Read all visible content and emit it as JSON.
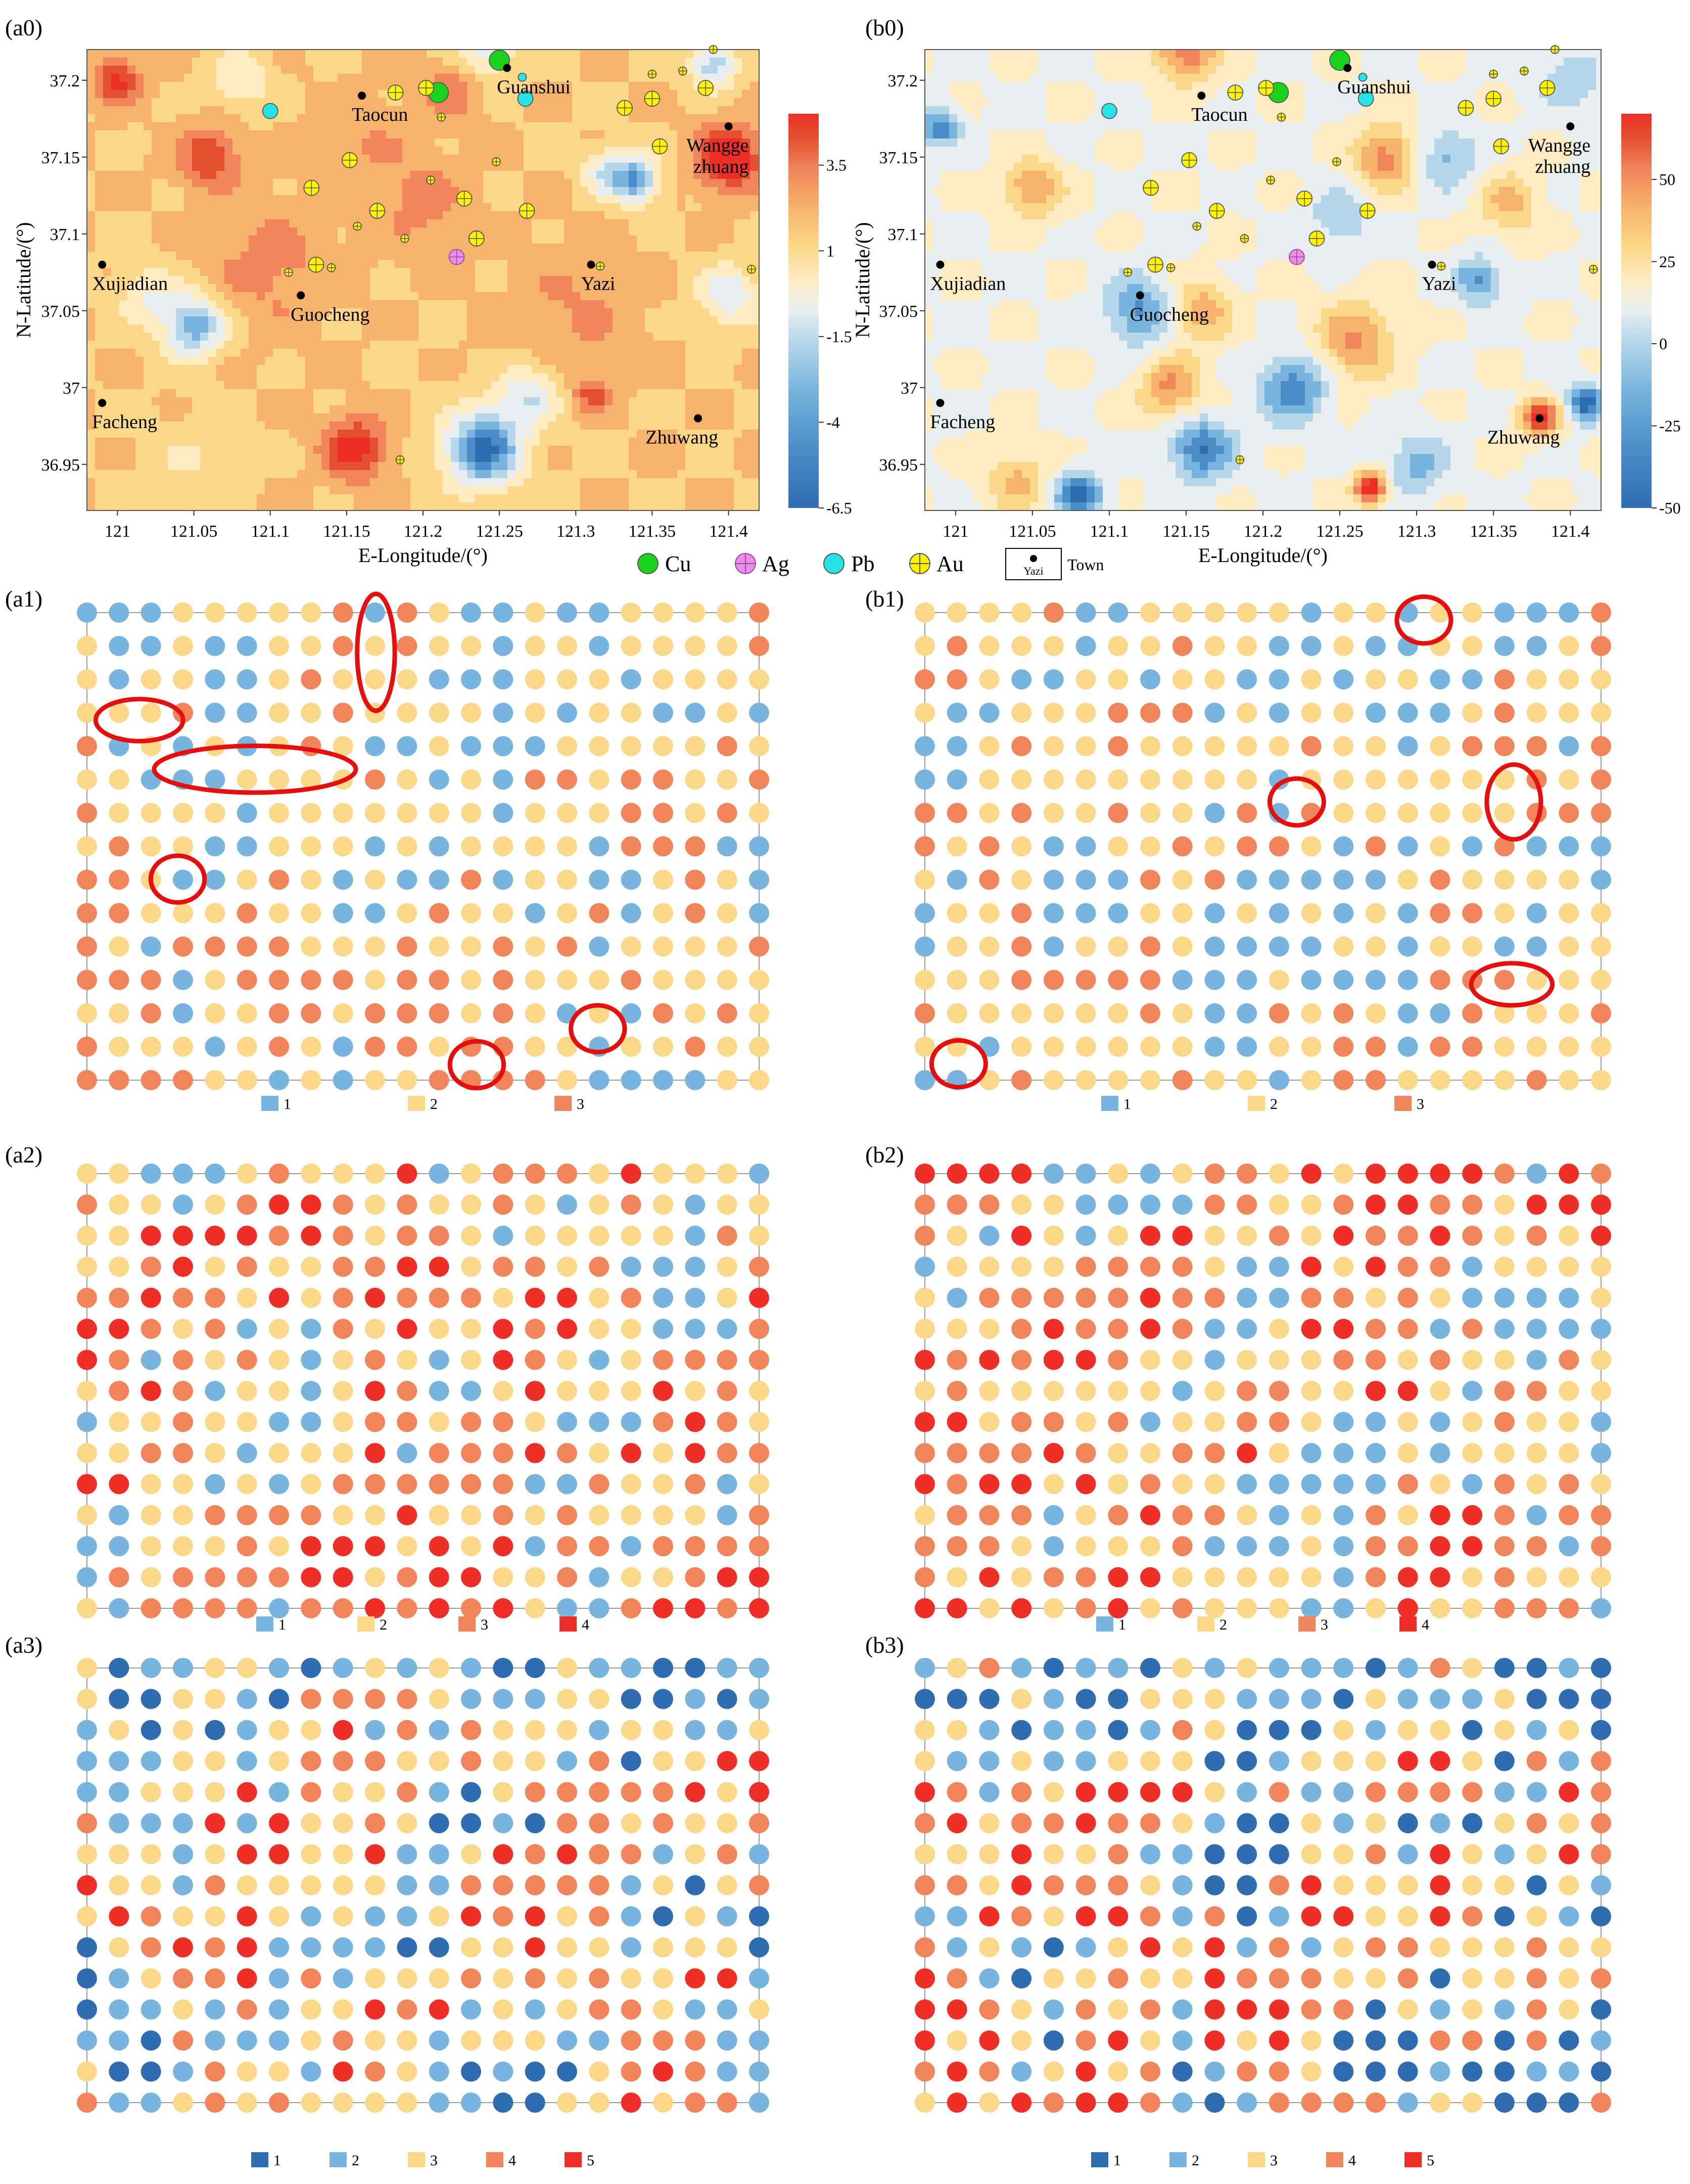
{
  "panels_map": [
    {
      "label": "(a0)",
      "xlabel": "E-Longitude/(°)",
      "ylabel": "N-Latitude/(°)",
      "x_ticks": [
        "121",
        "121.05",
        "121.1",
        "121.15",
        "121.2",
        "121.25",
        "121.3",
        "121.35",
        "121.4"
      ],
      "y_ticks": [
        "37.2",
        "37.15",
        "37.1",
        "37.05",
        "37",
        "36.95"
      ],
      "colorbar_ticks": [
        "3.5",
        "1",
        "-1.5",
        "-4",
        "-6.5"
      ],
      "colorbar_range": [
        -6.5,
        5
      ]
    },
    {
      "label": "(b0)",
      "xlabel": "E-Longitude/(°)",
      "ylabel": "N-Latitude/(°)",
      "x_ticks": [
        "121",
        "121.05",
        "121.1",
        "121.15",
        "121.2",
        "121.25",
        "121.3",
        "121.35",
        "121.4"
      ],
      "y_ticks": [
        "37.2",
        "37.15",
        "37.1",
        "37.05",
        "37",
        "36.95"
      ],
      "colorbar_ticks": [
        "50",
        "25",
        "0",
        "-25",
        "-50"
      ],
      "colorbar_range": [
        -50,
        70
      ]
    }
  ],
  "map_legend": {
    "cu": "Cu",
    "ag": "Ag",
    "pb": "Pb",
    "au": "Au",
    "town_sample": "Yazi",
    "town": "Town"
  },
  "towns": [
    {
      "name": "Guanshui",
      "lon": 121.255,
      "lat": 37.208
    },
    {
      "name": "Taocun",
      "lon": 121.16,
      "lat": 37.19
    },
    {
      "name": "Wangge",
      "name2": "zhuang",
      "lon": 121.4,
      "lat": 37.17
    },
    {
      "name": "Xujiadian",
      "lon": 120.99,
      "lat": 37.08
    },
    {
      "name": "Guocheng",
      "lon": 121.12,
      "lat": 37.06
    },
    {
      "name": "Yazi",
      "lon": 121.31,
      "lat": 37.08
    },
    {
      "name": "Facheng",
      "lon": 120.99,
      "lat": 36.99
    },
    {
      "name": "Zhuwang",
      "lon": 121.38,
      "lat": 36.98
    }
  ],
  "deposits": [
    {
      "type": "cu",
      "lon": 121.25,
      "lat": 37.213,
      "size": "l"
    },
    {
      "type": "cu",
      "lon": 121.21,
      "lat": 37.192,
      "size": "l"
    },
    {
      "type": "pb",
      "lon": 121.1,
      "lat": 37.18,
      "size": "m"
    },
    {
      "type": "pb",
      "lon": 121.267,
      "lat": 37.188,
      "size": "m"
    },
    {
      "type": "pb",
      "lon": 121.265,
      "lat": 37.202,
      "size": "s"
    },
    {
      "type": "ag",
      "lon": 121.222,
      "lat": 37.085,
      "size": "m"
    },
    {
      "type": "au",
      "lon": 121.182,
      "lat": 37.192,
      "size": "m"
    },
    {
      "type": "au",
      "lon": 121.202,
      "lat": 37.195,
      "size": "m"
    },
    {
      "type": "au",
      "lon": 121.212,
      "lat": 37.176,
      "size": "s"
    },
    {
      "type": "au",
      "lon": 121.152,
      "lat": 37.148,
      "size": "m"
    },
    {
      "type": "au",
      "lon": 121.205,
      "lat": 37.135,
      "size": "s"
    },
    {
      "type": "au",
      "lon": 121.227,
      "lat": 37.123,
      "size": "m"
    },
    {
      "type": "au",
      "lon": 121.248,
      "lat": 37.147,
      "size": "s"
    },
    {
      "type": "au",
      "lon": 121.268,
      "lat": 37.115,
      "size": "m"
    },
    {
      "type": "au",
      "lon": 121.127,
      "lat": 37.13,
      "size": "m"
    },
    {
      "type": "au",
      "lon": 121.17,
      "lat": 37.115,
      "size": "m"
    },
    {
      "type": "au",
      "lon": 121.157,
      "lat": 37.105,
      "size": "s"
    },
    {
      "type": "au",
      "lon": 121.188,
      "lat": 37.097,
      "size": "s"
    },
    {
      "type": "au",
      "lon": 121.235,
      "lat": 37.097,
      "size": "m"
    },
    {
      "type": "au",
      "lon": 121.13,
      "lat": 37.08,
      "size": "m"
    },
    {
      "type": "au",
      "lon": 121.14,
      "lat": 37.078,
      "size": "s"
    },
    {
      "type": "au",
      "lon": 121.112,
      "lat": 37.075,
      "size": "s"
    },
    {
      "type": "au",
      "lon": 121.185,
      "lat": 36.953,
      "size": "s"
    },
    {
      "type": "au",
      "lon": 121.316,
      "lat": 37.079,
      "size": "s"
    },
    {
      "type": "au",
      "lon": 121.332,
      "lat": 37.182,
      "size": "m"
    },
    {
      "type": "au",
      "lon": 121.35,
      "lat": 37.188,
      "size": "m"
    },
    {
      "type": "au",
      "lon": 121.355,
      "lat": 37.157,
      "size": "m"
    },
    {
      "type": "au",
      "lon": 121.385,
      "lat": 37.195,
      "size": "m"
    },
    {
      "type": "au",
      "lon": 121.35,
      "lat": 37.204,
      "size": "s"
    },
    {
      "type": "au",
      "lon": 121.37,
      "lat": 37.206,
      "size": "s"
    },
    {
      "type": "au",
      "lon": 121.39,
      "lat": 37.22,
      "size": "s"
    },
    {
      "type": "au",
      "lon": 121.415,
      "lat": 37.077,
      "size": "s"
    }
  ],
  "field_a": [
    [
      121.0,
      37.2,
      3.5,
      0.015
    ],
    [
      121.06,
      37.15,
      3.0,
      0.02
    ],
    [
      121.08,
      37.2,
      -2.0,
      0.02
    ],
    [
      121.22,
      37.195,
      2.0,
      0.02
    ],
    [
      121.24,
      37.22,
      -3.0,
      0.02
    ],
    [
      121.4,
      37.15,
      5.0,
      0.02
    ],
    [
      121.39,
      37.21,
      -4.0,
      0.015
    ],
    [
      121.32,
      37.14,
      -3.0,
      0.015
    ],
    [
      121.34,
      37.135,
      -5.0,
      0.015
    ],
    [
      121.05,
      37.04,
      -5.0,
      0.02
    ],
    [
      121.02,
      37.06,
      -2.0,
      0.02
    ],
    [
      121.155,
      36.96,
      4.0,
      0.02
    ],
    [
      121.24,
      36.96,
      -6.5,
      0.025
    ],
    [
      121.27,
      36.995,
      -3.0,
      0.02
    ],
    [
      121.31,
      36.995,
      2.5,
      0.012
    ],
    [
      121.2,
      37.12,
      1.5,
      0.03
    ],
    [
      121.16,
      37.16,
      1.0,
      0.03
    ],
    [
      121.05,
      36.95,
      -1.0,
      0.03
    ],
    [
      121.4,
      37.06,
      -3.0,
      0.02
    ],
    [
      121.1,
      37.08,
      1.5,
      0.04
    ],
    [
      121.3,
      37.05,
      1.2,
      0.04
    ]
  ],
  "field_b": [
    [
      121.05,
      37.13,
      35.0,
      0.018
    ],
    [
      121.12,
      37.05,
      -35.0,
      0.022
    ],
    [
      121.16,
      37.05,
      30.0,
      0.02
    ],
    [
      121.14,
      37.0,
      35.0,
      0.02
    ],
    [
      121.22,
      37.0,
      -40.0,
      0.022
    ],
    [
      121.16,
      36.96,
      -45.0,
      0.02
    ],
    [
      121.28,
      37.15,
      40.0,
      0.02
    ],
    [
      121.32,
      37.15,
      -25.0,
      0.02
    ],
    [
      121.25,
      37.11,
      -20.0,
      0.02
    ],
    [
      121.15,
      37.22,
      45.0,
      0.02
    ],
    [
      121.26,
      37.03,
      35.0,
      0.025
    ],
    [
      121.38,
      36.98,
      60.0,
      0.012
    ],
    [
      121.41,
      36.99,
      -50.0,
      0.012
    ],
    [
      121.27,
      36.935,
      70.0,
      0.01
    ],
    [
      121.08,
      36.93,
      -50.0,
      0.015
    ],
    [
      120.99,
      37.17,
      -40.0,
      0.012
    ],
    [
      121.36,
      37.12,
      25.0,
      0.02
    ],
    [
      121.34,
      37.07,
      -35.0,
      0.015
    ],
    [
      121.3,
      36.95,
      -25.0,
      0.02
    ],
    [
      121.04,
      36.94,
      25.0,
      0.02
    ],
    [
      121.4,
      37.2,
      -20.0,
      0.02
    ]
  ],
  "chart_data": [
    {
      "label": "(a1)",
      "type": "scatter",
      "rows": 15,
      "cols": 22,
      "classes": 3,
      "seed": 11,
      "legend": [
        "1",
        "2",
        "3"
      ],
      "highlight_circles": [
        [
          0.43,
          0.085,
          0.028,
          0.125
        ],
        [
          0.078,
          0.23,
          0.065,
          0.045
        ],
        [
          0.25,
          0.335,
          0.15,
          0.05
        ],
        [
          0.135,
          0.57,
          0.04,
          0.05
        ],
        [
          0.58,
          0.967,
          0.04,
          0.05
        ],
        [
          0.76,
          0.89,
          0.04,
          0.05
        ]
      ]
    },
    {
      "label": "(b1)",
      "type": "scatter",
      "rows": 15,
      "cols": 22,
      "classes": 3,
      "seed": 23,
      "legend": [
        "1",
        "2",
        "3"
      ],
      "highlight_circles": [
        [
          0.738,
          0.016,
          0.04,
          0.05
        ],
        [
          0.55,
          0.405,
          0.04,
          0.05
        ],
        [
          0.871,
          0.405,
          0.04,
          0.08
        ],
        [
          0.868,
          0.795,
          0.06,
          0.045
        ],
        [
          0.05,
          0.965,
          0.04,
          0.05
        ]
      ]
    },
    {
      "label": "(a2)",
      "type": "scatter",
      "rows": 15,
      "cols": 22,
      "classes": 4,
      "seed": 37,
      "legend": [
        "1",
        "2",
        "3",
        "4"
      ],
      "highlight_circles": []
    },
    {
      "label": "(b2)",
      "type": "scatter",
      "rows": 15,
      "cols": 22,
      "classes": 4,
      "seed": 41,
      "legend": [
        "1",
        "2",
        "3",
        "4"
      ],
      "highlight_circles": []
    },
    {
      "label": "(a3)",
      "type": "scatter",
      "rows": 15,
      "cols": 22,
      "classes": 5,
      "seed": 53,
      "legend": [
        "1",
        "2",
        "3",
        "4",
        "5"
      ],
      "highlight_circles": []
    },
    {
      "label": "(b3)",
      "type": "scatter",
      "rows": 15,
      "cols": 22,
      "classes": 5,
      "seed": 67,
      "legend": [
        "1",
        "2",
        "3",
        "4",
        "5"
      ],
      "highlight_circles": []
    }
  ],
  "colors": {
    "deep_blue": "#2f6db0",
    "light_blue": "#78b4de",
    "cream": "#fbd889",
    "orange": "#f0845a",
    "red": "#ee2f28",
    "cu": "#1bd11b",
    "ag": "#e88ee8",
    "pb": "#27e3e8",
    "au": "#fff200",
    "circle": "#e40f0f",
    "ramp": [
      "#2f6db0",
      "#4a8dc8",
      "#78b4de",
      "#b6d6ea",
      "#e8eef0",
      "#fdebc2",
      "#fbd889",
      "#f7b36d",
      "#f0845a",
      "#e4502f",
      "#ee2f28"
    ]
  }
}
